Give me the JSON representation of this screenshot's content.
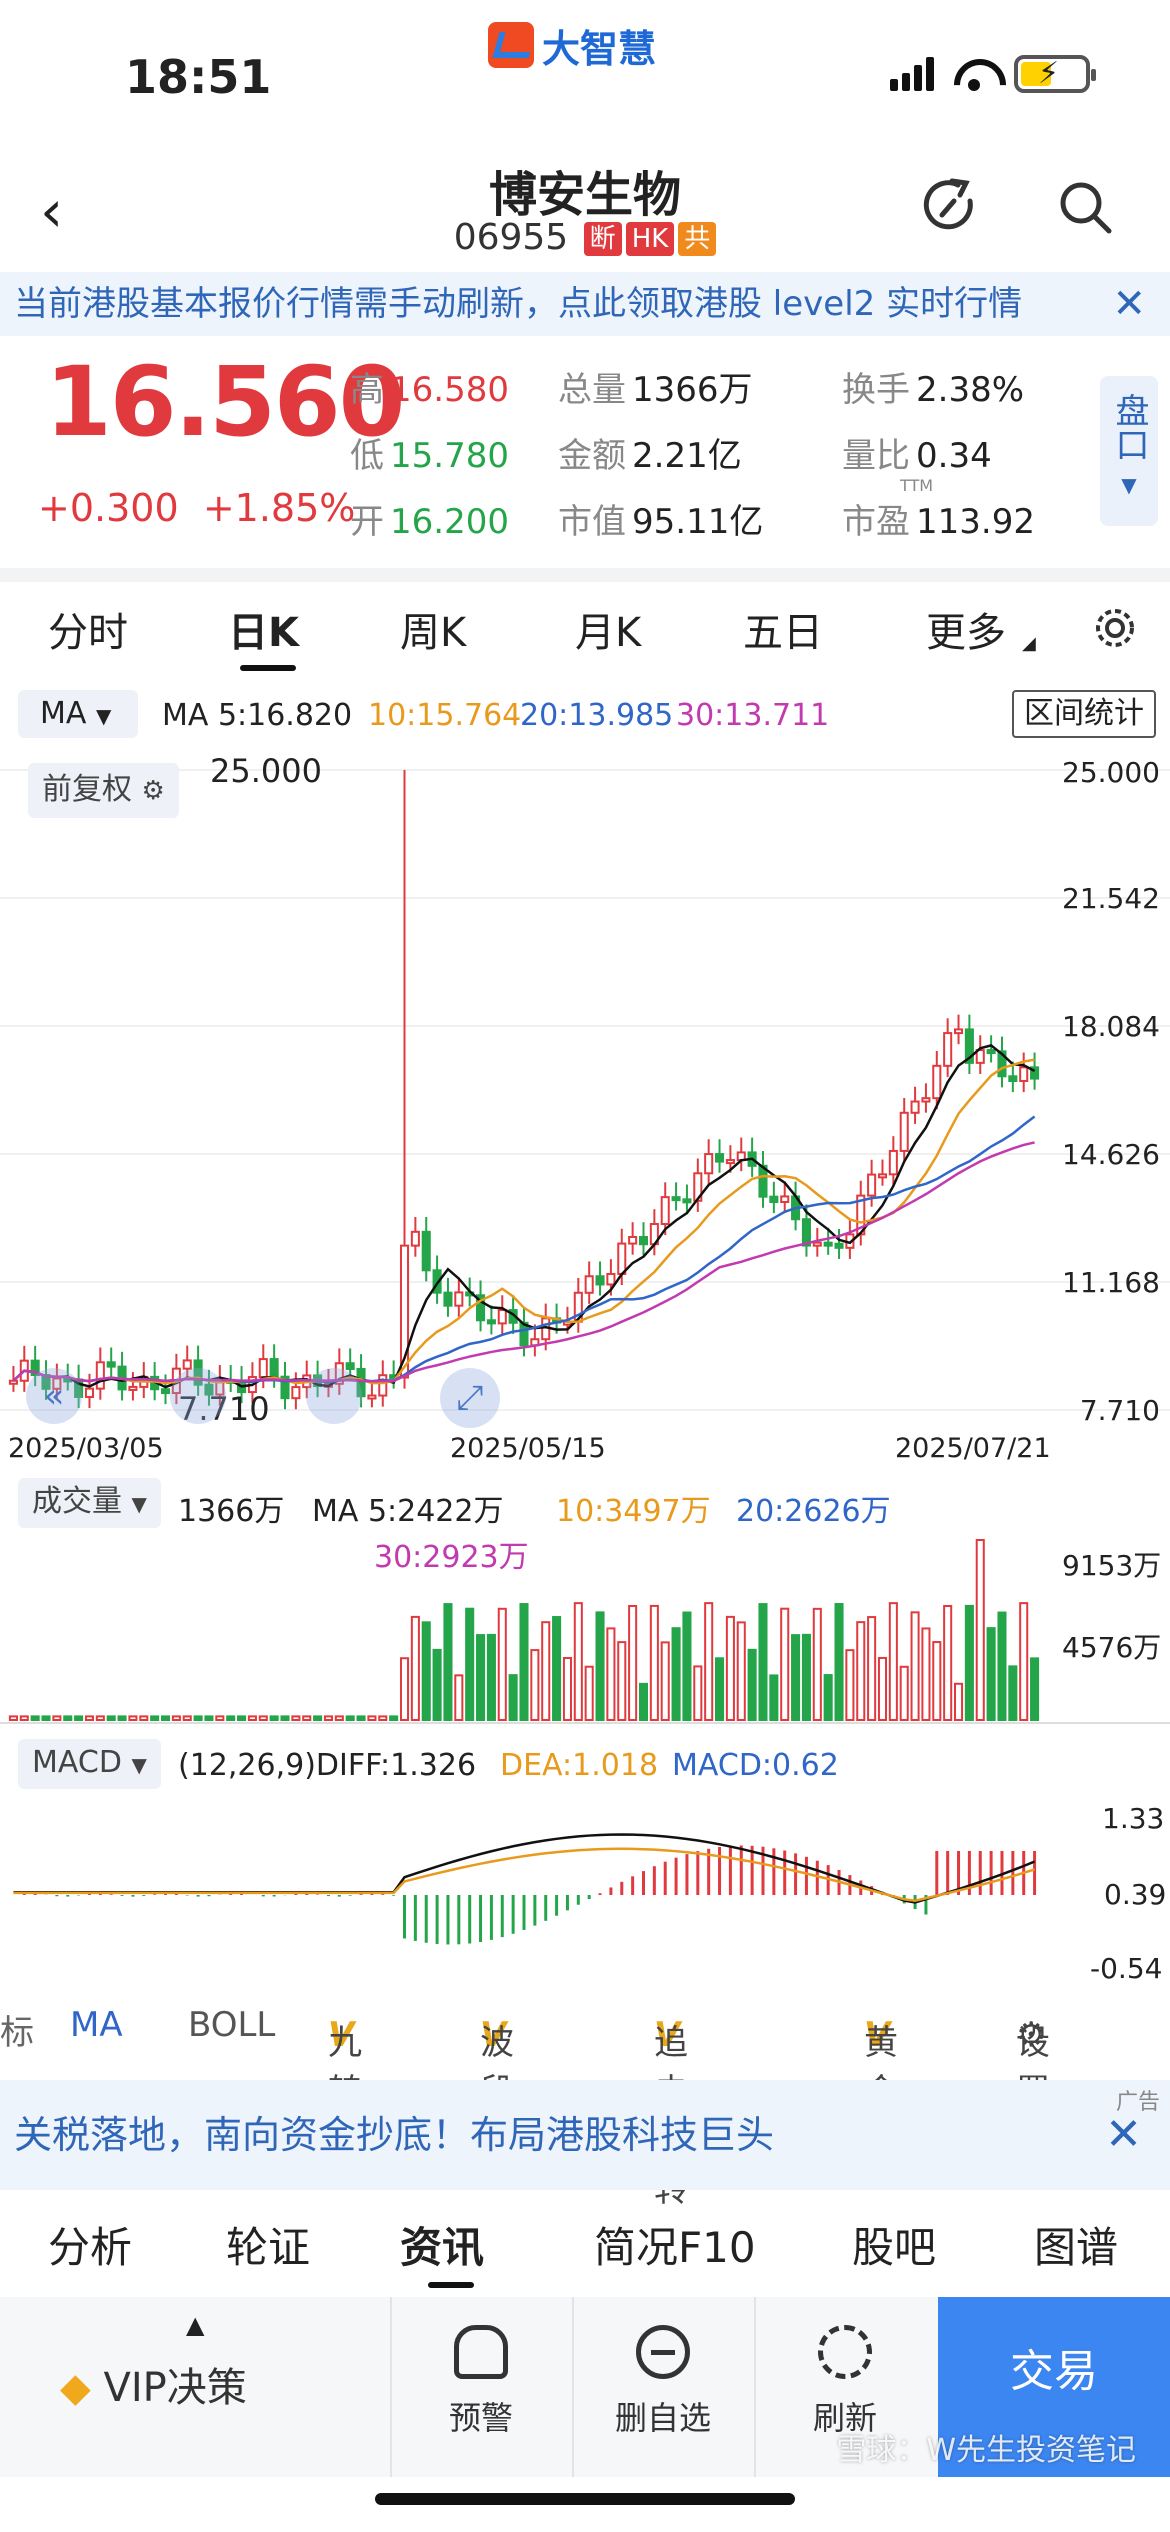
{
  "status_bar": {
    "time": "18:51",
    "logo_text": "大智慧"
  },
  "header": {
    "title": "博安生物",
    "code": "06955",
    "tags": [
      "断",
      "HK",
      "共"
    ]
  },
  "notice_banner": {
    "text": "当前港股基本报价行情需手动刷新，点此领取港股 level2 实时行情",
    "close": "✕"
  },
  "quote": {
    "price": "16.560",
    "change": "+0.300",
    "change_pct": "+1.85%",
    "high_label": "高",
    "high": "16.580",
    "low_label": "低",
    "low": "15.780",
    "open_label": "开",
    "open": "16.200",
    "volume_label": "总量",
    "volume": "1366万",
    "amount_label": "金额",
    "amount": "2.21亿",
    "mktcap_label": "市值",
    "mktcap": "95.11亿",
    "turnover_label": "换手",
    "turnover": "2.38%",
    "vol_ratio_label": "量比",
    "vol_ratio": "0.34",
    "pe_label": "市盈",
    "pe_sup": "TTM",
    "pe": "113.92",
    "pankou": "盘口"
  },
  "period_tabs": [
    "分时",
    "日K",
    "周K",
    "月K",
    "五日",
    "更多"
  ],
  "ma_bar": {
    "select": "MA",
    "ma5": "MA 5:16.820",
    "ma10": "10:15.764",
    "ma20": "20:13.985",
    "ma30": "30:13.711",
    "range_button": "区间统计"
  },
  "colors": {
    "up": "#e03a3e",
    "down": "#24a54a",
    "ma5": "#111111",
    "ma10": "#e89a1c",
    "ma20": "#2f66c8",
    "ma30": "#c23ab0"
  },
  "kline": {
    "fuquan": "前复权",
    "max_label": "25.000",
    "min_label": "7.710",
    "y_ticks": [
      "25.000",
      "21.542",
      "18.084",
      "14.626",
      "11.168",
      "7.710"
    ],
    "x_ticks": [
      "2025/03/05",
      "2025/05/15",
      "2025/07/21"
    ]
  },
  "volume_panel": {
    "select": "成交量",
    "vol": "1366万",
    "ma5": "MA 5:2422万",
    "ma10": "10:3497万",
    "ma20": "20:2626万",
    "ma30": "30:2923万",
    "y_ticks": [
      "9153万",
      "4576万"
    ]
  },
  "macd_panel": {
    "select": "MACD",
    "params": "(12,26,9)DIFF:1.326",
    "dea": "DEA:1.018",
    "macd": "MACD:0.62",
    "y_ticks": [
      "1.33",
      "0.39",
      "-0.54"
    ]
  },
  "indicator_tabs": {
    "cut": "标",
    "ma": "MA",
    "boll": "BOLL",
    "jiuzhuan": "九转",
    "boduan": "波段王",
    "zhuiji": "追击反转",
    "huangjin": "黄金",
    "settings": "设置"
  },
  "ad_banner": {
    "text": "关税落地，南向资金抄底！布局港股科技巨头",
    "tag": "广告",
    "close": "✕"
  },
  "bottom_tabs": [
    "分析",
    "轮证",
    "资讯",
    "简况F10",
    "股吧",
    "图谱"
  ],
  "toolbar": {
    "vip": "VIP决策",
    "alert": "预警",
    "remove": "删自选",
    "refresh": "刷新",
    "trade": "交易"
  },
  "watermark": "雪球：W先生投资笔记",
  "chart_data": {
    "type": "candlestick",
    "x_range": [
      "2025/03/05",
      "2025/07/21"
    ],
    "ylim": [
      7.71,
      25.0
    ],
    "last_close": 16.56,
    "ma": {
      "ma5": 16.82,
      "ma10": 15.764,
      "ma20": 13.985,
      "ma30": 13.711
    },
    "peak": 25.0,
    "recent_high": 18.6,
    "volume_max_label": 9153,
    "macd": {
      "diff": 1.326,
      "dea": 1.018,
      "macd": 0.62
    }
  }
}
